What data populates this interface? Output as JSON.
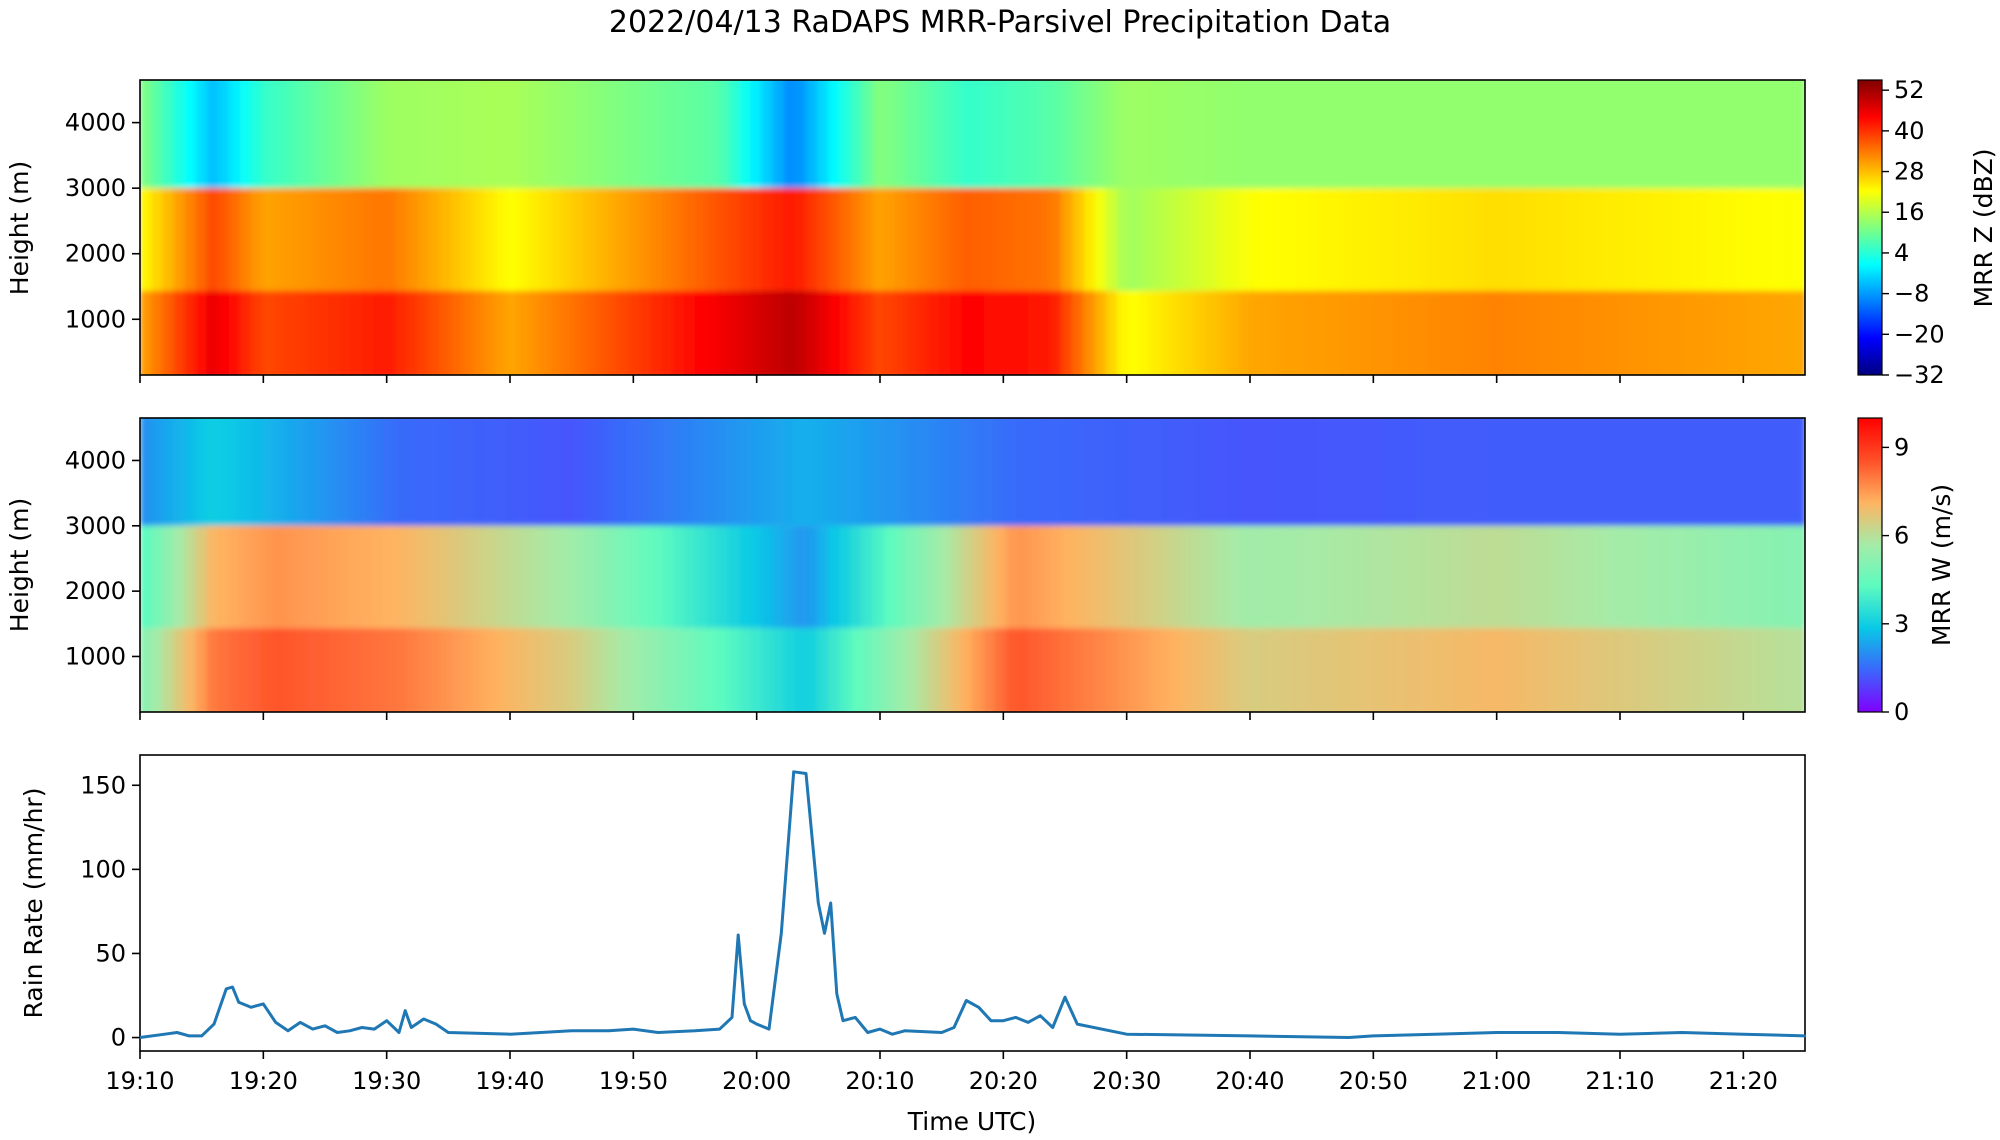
{
  "figure": {
    "title": "2022/04/13 RaDAPS MRR-Parsivel Precipitation Data",
    "x_ticks": [
      "19:10",
      "19:20",
      "19:30",
      "19:40",
      "19:50",
      "20:00",
      "20:10",
      "20:20",
      "20:30",
      "20:40",
      "20:50",
      "21:00",
      "21:10",
      "21:20"
    ],
    "xlabel": "Time UTC)"
  },
  "panels": {
    "reflectivity": {
      "ylabel": "Height (m)",
      "y_ticks": [
        "1000",
        "2000",
        "3000",
        "4000"
      ],
      "colorbar_label": "MRR Z (dBZ)",
      "colorbar_ticks": [
        "52",
        "40",
        "28",
        "16",
        "4",
        "−8",
        "−20",
        "−32"
      ]
    },
    "velocity": {
      "ylabel": "Height (m)",
      "y_ticks": [
        "1000",
        "2000",
        "3000",
        "4000"
      ],
      "colorbar_label": "MRR W (m/s)",
      "colorbar_ticks": [
        "9",
        "6",
        "3",
        "0"
      ]
    },
    "rainrate": {
      "ylabel": "Rain Rate (mm/hr)",
      "y_ticks": [
        "0",
        "50",
        "100",
        "150"
      ]
    }
  },
  "colors": {
    "line": "#1f77b4",
    "jet": [
      "#000080",
      "#0000ff",
      "#0080ff",
      "#00ffff",
      "#80ff80",
      "#ffff00",
      "#ff8000",
      "#ff0000",
      "#800000"
    ],
    "rainbow": [
      "#8000ff",
      "#3b66fb",
      "#08c9e6",
      "#5dfbbf",
      "#a6eba7",
      "#ffb360",
      "#ff4f27",
      "#ff0000"
    ]
  },
  "chart_data": [
    {
      "type": "heatmap",
      "title": "",
      "xlabel": "",
      "ylabel": "Height (m)",
      "x_range": [
        "19:10",
        "21:25"
      ],
      "ylim": [
        150,
        4650
      ],
      "z_label": "MRR Z (dBZ)",
      "z_range": [
        -32,
        55
      ],
      "cmap": "jet",
      "layer_top_m": 3000,
      "value_profile": [
        {
          "time": "19:10",
          "low_level_dbz": 30,
          "aloft_dbz": 12
        },
        {
          "time": "19:16",
          "low_level_dbz": 46,
          "aloft_dbz": -5
        },
        {
          "time": "19:20",
          "low_level_dbz": 38,
          "aloft_dbz": 5
        },
        {
          "time": "19:30",
          "low_level_dbz": 42,
          "aloft_dbz": 14
        },
        {
          "time": "19:40",
          "low_level_dbz": 30,
          "aloft_dbz": 15
        },
        {
          "time": "19:57",
          "low_level_dbz": 45,
          "aloft_dbz": 8
        },
        {
          "time": "20:03",
          "low_level_dbz": 50,
          "aloft_dbz": -10
        },
        {
          "time": "20:10",
          "low_level_dbz": 38,
          "aloft_dbz": 12
        },
        {
          "time": "20:17",
          "low_level_dbz": 44,
          "aloft_dbz": 5
        },
        {
          "time": "20:24",
          "low_level_dbz": 42,
          "aloft_dbz": 8
        },
        {
          "time": "20:30",
          "low_level_dbz": 22,
          "aloft_dbz": 14
        },
        {
          "time": "20:40",
          "low_level_dbz": 30,
          "aloft_dbz": 13
        },
        {
          "time": "21:00",
          "low_level_dbz": 33,
          "aloft_dbz": 13
        },
        {
          "time": "21:24",
          "low_level_dbz": 30,
          "aloft_dbz": 13
        }
      ]
    },
    {
      "type": "heatmap",
      "title": "",
      "xlabel": "",
      "ylabel": "Height (m)",
      "x_range": [
        "19:10",
        "21:25"
      ],
      "ylim": [
        150,
        4650
      ],
      "z_label": "MRR W (m/s)",
      "z_range": [
        0,
        10
      ],
      "cmap": "rainbow",
      "layer_top_m": 3000,
      "value_profile": [
        {
          "time": "19:10",
          "below_layer_ms": 5,
          "above_layer_ms": 2
        },
        {
          "time": "19:16",
          "below_layer_ms": 8,
          "above_layer_ms": 3
        },
        {
          "time": "19:21",
          "below_layer_ms": 8.5,
          "above_layer_ms": 2.5
        },
        {
          "time": "19:31",
          "below_layer_ms": 8,
          "above_layer_ms": 1.5
        },
        {
          "time": "19:45",
          "below_layer_ms": 6.5,
          "above_layer_ms": 1.2
        },
        {
          "time": "20:04",
          "below_layer_ms": 3,
          "above_layer_ms": 2.5
        },
        {
          "time": "20:21",
          "below_layer_ms": 8.5,
          "above_layer_ms": 1.5
        },
        {
          "time": "20:40",
          "below_layer_ms": 6.5,
          "above_layer_ms": 1.2
        },
        {
          "time": "21:00",
          "below_layer_ms": 7,
          "above_layer_ms": 1.3
        },
        {
          "time": "21:24",
          "below_layer_ms": 6,
          "above_layer_ms": 1.3
        }
      ]
    },
    {
      "type": "line",
      "title": "",
      "xlabel": "Time UTC)",
      "ylabel": "Rain Rate (mm/hr)",
      "x_range": [
        "19:10",
        "21:25"
      ],
      "ylim": [
        -8,
        168
      ],
      "series": [
        {
          "name": "",
          "x": [
            "19:10",
            "19:12",
            "19:13",
            "19:14",
            "19:15",
            "19:16",
            "19:17",
            "19:17:30",
            "19:18",
            "19:19",
            "19:20",
            "19:21",
            "19:22",
            "19:23",
            "19:24",
            "19:25",
            "19:26",
            "19:27",
            "19:28",
            "19:29",
            "19:30",
            "19:31",
            "19:31:30",
            "19:32",
            "19:33",
            "19:34",
            "19:35",
            "19:40",
            "19:45",
            "19:48",
            "19:50",
            "19:52",
            "19:55",
            "19:57",
            "19:58",
            "19:58:30",
            "19:59",
            "19:59:30",
            "20:00",
            "20:01",
            "20:02",
            "20:03",
            "20:04",
            "20:05",
            "20:05:30",
            "20:06",
            "20:06:30",
            "20:07",
            "20:08",
            "20:09",
            "20:10",
            "20:11",
            "20:12",
            "20:15",
            "20:16",
            "20:17",
            "20:18",
            "20:19",
            "20:20",
            "20:21",
            "20:22",
            "20:23",
            "20:24",
            "20:25",
            "20:26",
            "20:30",
            "20:40",
            "20:48",
            "20:50",
            "20:55",
            "21:00",
            "21:05",
            "21:10",
            "21:15",
            "21:20",
            "21:25"
          ],
          "y": [
            0,
            2,
            3,
            1,
            1,
            8,
            29,
            30,
            21,
            18,
            20,
            9,
            4,
            9,
            5,
            7,
            3,
            4,
            6,
            5,
            10,
            3,
            16,
            6,
            11,
            8,
            3,
            2,
            4,
            4,
            5,
            3,
            4,
            5,
            12,
            61,
            20,
            10,
            8,
            5,
            62,
            158,
            157,
            80,
            62,
            80,
            26,
            10,
            12,
            3,
            5,
            2,
            4,
            3,
            6,
            22,
            18,
            10,
            10,
            12,
            9,
            13,
            6,
            24,
            8,
            2,
            1,
            0,
            1,
            2,
            3,
            3,
            2,
            3,
            2,
            1
          ]
        }
      ]
    }
  ]
}
